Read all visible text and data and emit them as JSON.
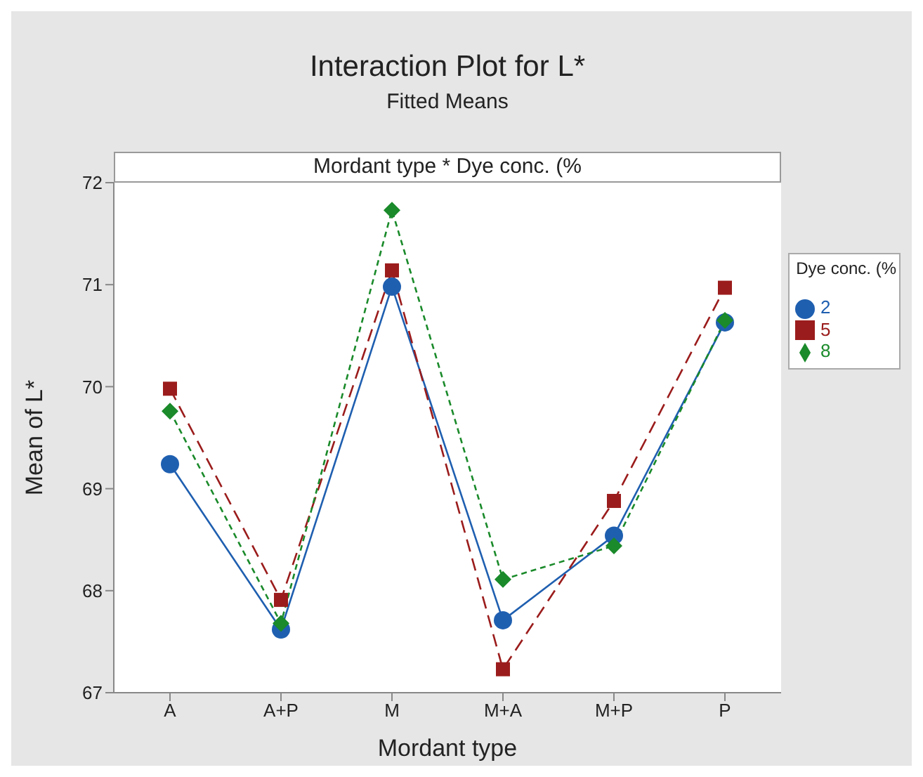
{
  "chart_data": {
    "type": "line",
    "title": "Interaction Plot for L*",
    "subtitle": "Fitted Means",
    "xlabel": "Mordant type",
    "ylabel": "Mean of L*",
    "legend_title": "Dye conc. (%",
    "annotations": [
      "Mordant type * Dye conc. (%"
    ],
    "categories": [
      "A",
      "A+P",
      "M",
      "M+A",
      "M+P",
      "P"
    ],
    "series": [
      {
        "name": "2",
        "color": "#1f5fb0",
        "marker": "circle",
        "line_style": "solid",
        "values": [
          69.24,
          67.62,
          70.98,
          67.71,
          68.54,
          70.63
        ]
      },
      {
        "name": "5",
        "color": "#9b1c1c",
        "marker": "square",
        "line_style": "dashed",
        "values": [
          69.98,
          67.91,
          71.14,
          67.23,
          68.88,
          70.97
        ]
      },
      {
        "name": "8",
        "color": "#1a8a2a",
        "marker": "diamond",
        "line_style": "dotted",
        "values": [
          69.76,
          67.68,
          71.73,
          68.11,
          68.44,
          70.65
        ]
      }
    ],
    "ylim": [
      67,
      72
    ],
    "yticks": [
      67,
      68,
      69,
      70,
      71,
      72
    ],
    "legend": "right"
  }
}
